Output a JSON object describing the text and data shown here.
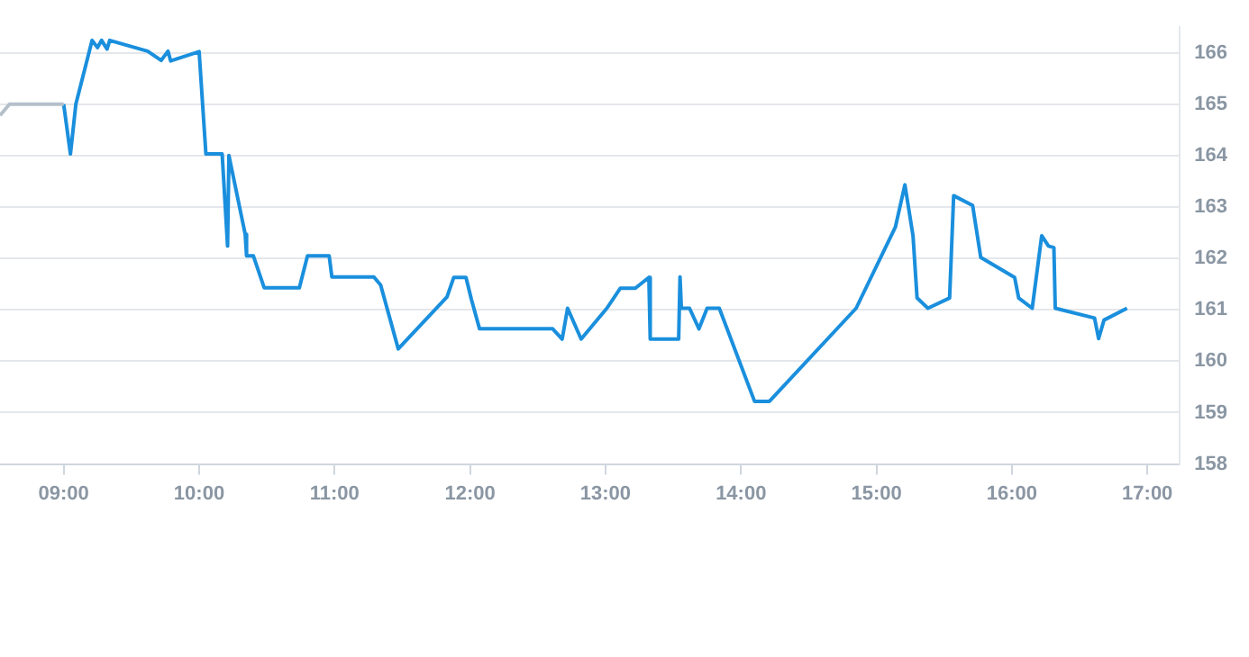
{
  "chart_data": {
    "type": "line",
    "xlim": [
      8.53,
      17.24
    ],
    "ylim": [
      158,
      166.5
    ],
    "xticks": [
      {
        "value": 9,
        "label": "09:00"
      },
      {
        "value": 10,
        "label": "10:00"
      },
      {
        "value": 11,
        "label": "11:00"
      },
      {
        "value": 12,
        "label": "12:00"
      },
      {
        "value": 13,
        "label": "13:00"
      },
      {
        "value": 14,
        "label": "14:00"
      },
      {
        "value": 15,
        "label": "15:00"
      },
      {
        "value": 16,
        "label": "16:00"
      },
      {
        "value": 17,
        "label": "17:00"
      }
    ],
    "yticks": [
      158,
      159,
      160,
      161,
      162,
      163,
      164,
      165,
      166
    ],
    "grid": "y",
    "legend": false,
    "marker": "none",
    "line_style": "solid",
    "series": [
      {
        "color": "#b4c0ca",
        "x": [
          8.53,
          8.6,
          9.0
        ],
        "values": [
          164.78,
          165,
          165
        ]
      },
      {
        "color": "#1a8fdd",
        "x": [
          9.0,
          9.05,
          9.09,
          9.21,
          9.25,
          9.28,
          9.32,
          9.34,
          9.62,
          9.72,
          9.77,
          9.79,
          10.0,
          10.05,
          10.17,
          10.21,
          10.22,
          10.34,
          10.35,
          10.4,
          10.48,
          10.74,
          10.8,
          10.96,
          10.98,
          11.29,
          11.34,
          11.47,
          11.83,
          11.88,
          11.97,
          12.01,
          12.07,
          12.61,
          12.68,
          12.72,
          12.82,
          13.01,
          13.11,
          13.22,
          13.32,
          13.33,
          13.54,
          13.55,
          13.56,
          13.62,
          13.69,
          13.75,
          13.84,
          14.1,
          14.21,
          14.85,
          15.14,
          15.21,
          15.27,
          15.3,
          15.38,
          15.54,
          15.57,
          15.71,
          15.77,
          16.02,
          16.05,
          16.15,
          16.22,
          16.27,
          16.31,
          16.32,
          16.61,
          16.64,
          16.68,
          16.85
        ],
        "values": [
          165,
          164.03,
          165,
          166.24,
          166.1,
          166.24,
          166.07,
          166.24,
          166.03,
          165.85,
          166.03,
          165.84,
          166.02,
          164.03,
          164.03,
          162.24,
          164.0,
          162.47,
          162.05,
          162.05,
          161.43,
          161.43,
          162.05,
          162.05,
          161.64,
          161.64,
          161.48,
          160.24,
          161.25,
          161.63,
          161.63,
          161.2,
          160.63,
          160.63,
          160.43,
          161.03,
          160.43,
          161.03,
          161.42,
          161.42,
          161.63,
          160.43,
          160.43,
          161.64,
          161.03,
          161.03,
          160.63,
          161.03,
          161.03,
          159.22,
          159.22,
          161.03,
          162.61,
          163.43,
          162.44,
          161.23,
          161.03,
          161.23,
          163.22,
          163.03,
          162.02,
          161.63,
          161.23,
          161.03,
          162.44,
          162.24,
          162.21,
          161.03,
          160.84,
          160.44,
          160.8,
          161.03
        ]
      }
    ]
  }
}
